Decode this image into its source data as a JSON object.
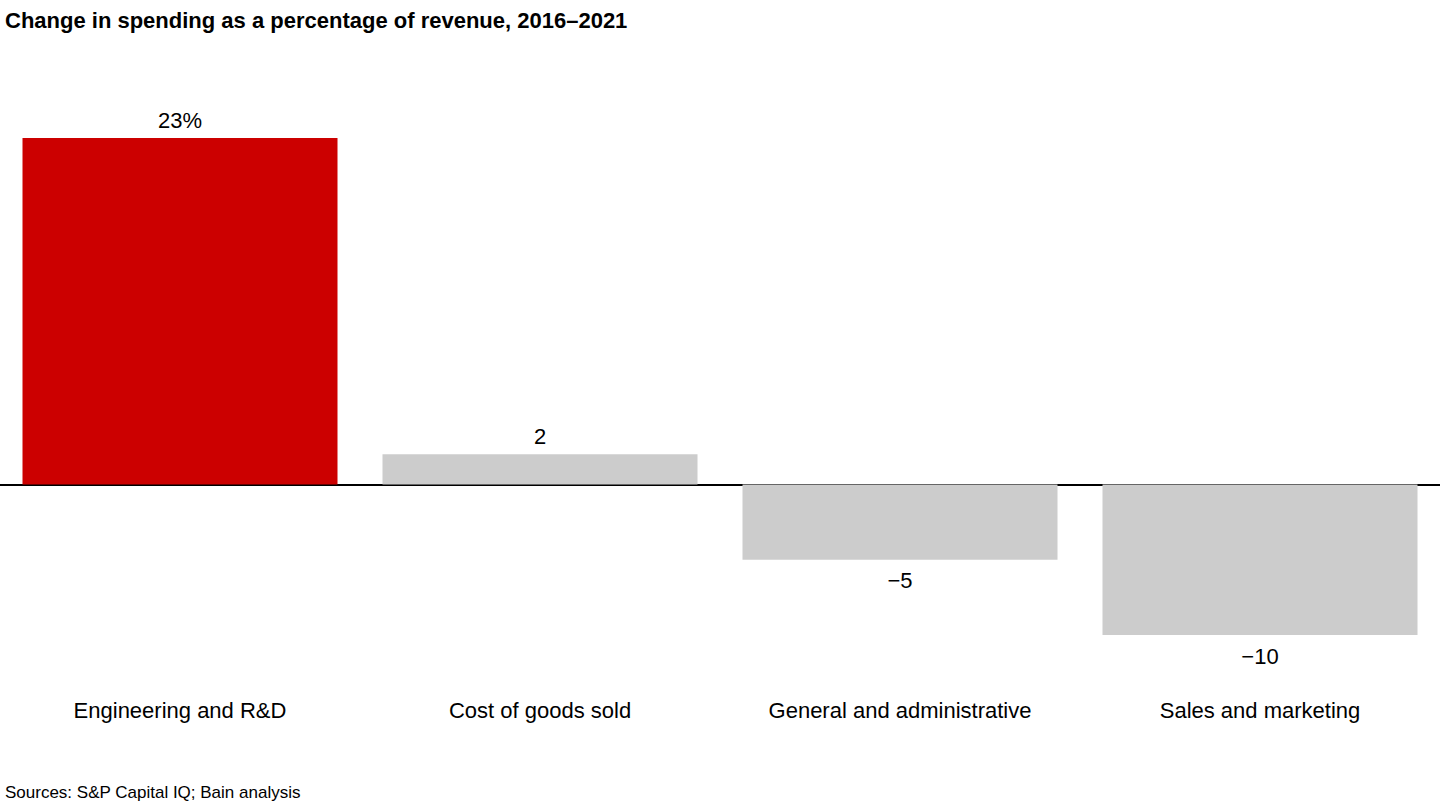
{
  "chart_data": {
    "type": "bar",
    "title": "Change in spending as a percentage of revenue, 2016–2021",
    "annotation": "Sources: S&P Capital IQ; Bain analysis",
    "categories": [
      "Engineering and R&D",
      "Cost of goods sold",
      "General and administrative",
      "Sales and marketing"
    ],
    "values": [
      23,
      2,
      -5,
      -10
    ],
    "value_labels": [
      "23%",
      "2",
      "−5",
      "−10"
    ],
    "colors": [
      "#cc0000",
      "#cccccc",
      "#cccccc",
      "#cccccc"
    ],
    "ylim": [
      -10,
      23
    ],
    "data_labels": true,
    "tick_labels": "x",
    "grid": false
  }
}
